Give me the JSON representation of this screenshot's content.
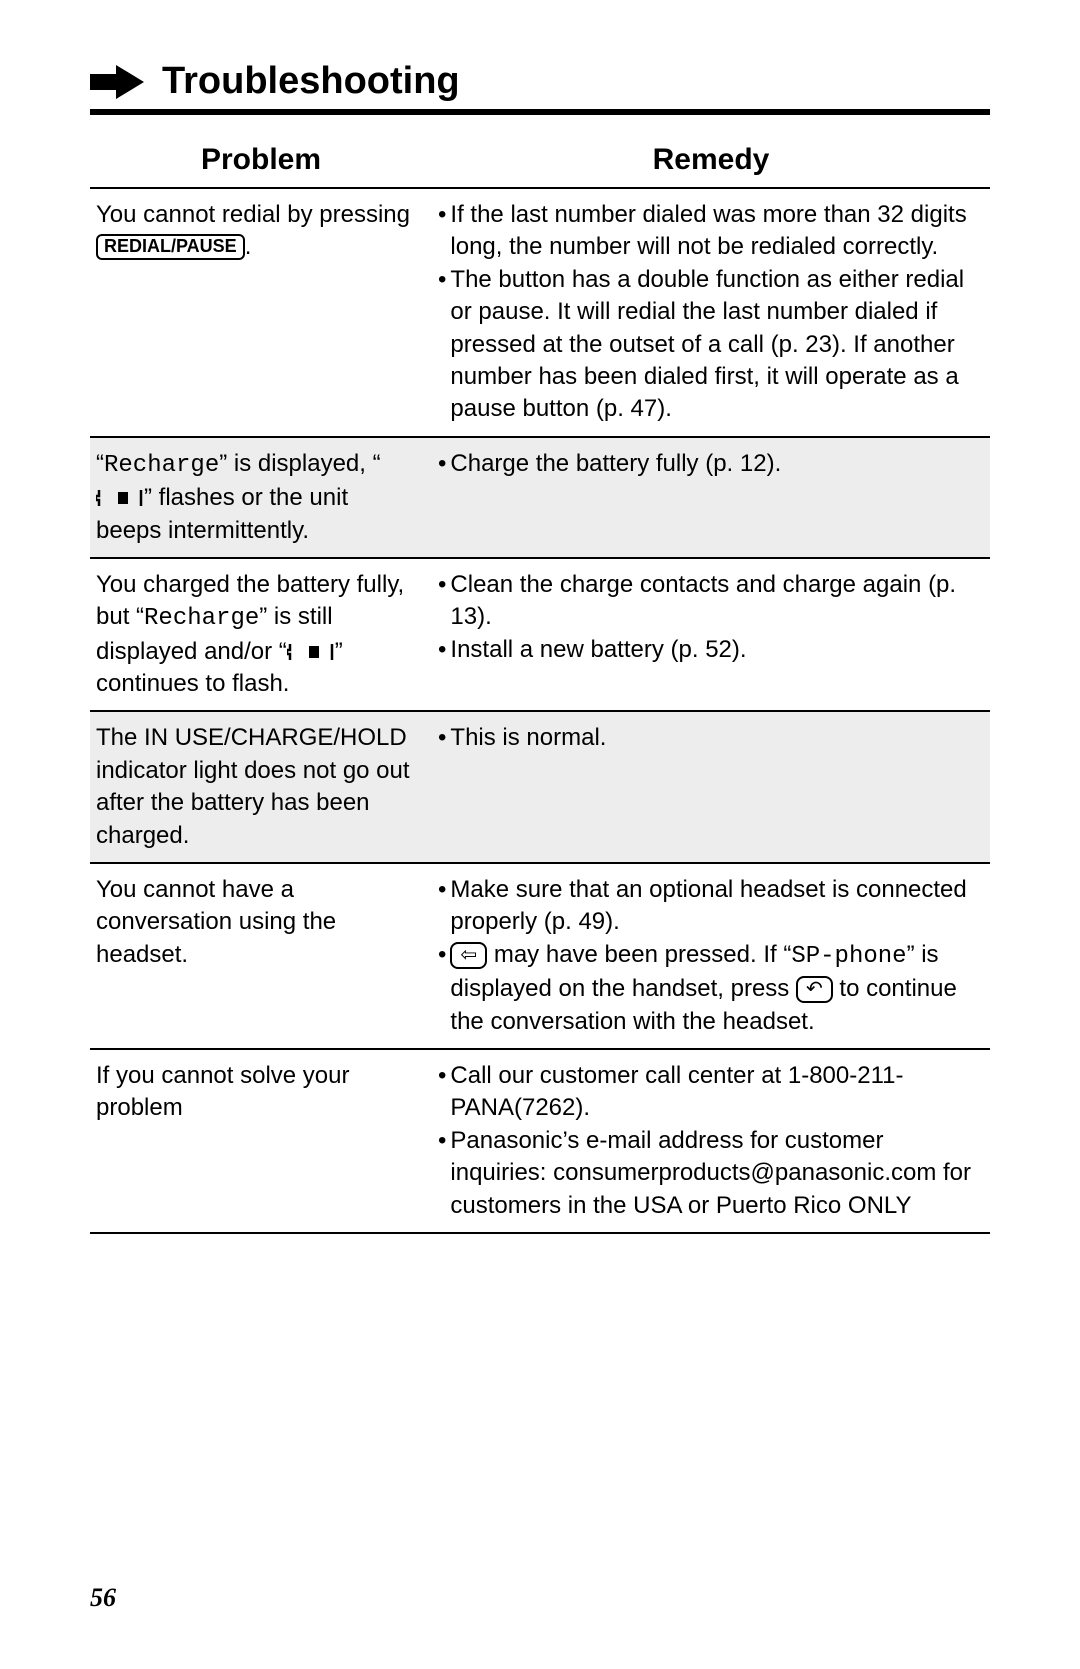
{
  "header": {
    "title": "Troubleshooting"
  },
  "columns": {
    "problem": "Problem",
    "remedy": "Remedy"
  },
  "rows": [
    {
      "shaded": false,
      "problem_parts": [
        {
          "t": "text",
          "v": "You cannot redial by pressing "
        },
        {
          "t": "keycap",
          "v": "REDIAL/PAUSE"
        },
        {
          "t": "text",
          "v": "."
        }
      ],
      "remedies": [
        [
          {
            "t": "text",
            "v": "If the last number dialed was more than 32 digits long, the number will not be redialed correctly."
          }
        ],
        [
          {
            "t": "text",
            "v": "The button has a double function as either redial or pause. It will redial the last number dialed if pressed at the outset of a call (p. 23). If another number has been dialed first, it will operate as a pause button (p. 47)."
          }
        ]
      ]
    },
    {
      "shaded": true,
      "problem_parts": [
        {
          "t": "text",
          "v": "“"
        },
        {
          "t": "mono",
          "v": "Recharge"
        },
        {
          "t": "text",
          "v": "” is displayed, “"
        },
        {
          "t": "batt",
          "v": ""
        },
        {
          "t": "text",
          "v": "” flashes or the unit beeps intermittently."
        }
      ],
      "remedies": [
        [
          {
            "t": "text",
            "v": "Charge the battery fully (p. 12)."
          }
        ]
      ]
    },
    {
      "shaded": false,
      "problem_parts": [
        {
          "t": "text",
          "v": "You charged the battery fully, but “"
        },
        {
          "t": "mono",
          "v": "Recharge"
        },
        {
          "t": "text",
          "v": "” is still displayed and/or “"
        },
        {
          "t": "batt",
          "v": ""
        },
        {
          "t": "text",
          "v": "” continues to flash."
        }
      ],
      "remedies": [
        [
          {
            "t": "text",
            "v": "Clean the charge contacts and charge again (p. 13)."
          }
        ],
        [
          {
            "t": "text",
            "v": "Install a new battery (p. 52)."
          }
        ]
      ]
    },
    {
      "shaded": true,
      "problem_parts": [
        {
          "t": "text",
          "v": "The IN USE/CHARGE/HOLD indicator light does not go out after the battery has been charged."
        }
      ],
      "remedies": [
        [
          {
            "t": "text",
            "v": "This is normal."
          }
        ]
      ]
    },
    {
      "shaded": false,
      "problem_parts": [
        {
          "t": "text",
          "v": "You cannot have a conversation using the headset."
        }
      ],
      "remedies": [
        [
          {
            "t": "text",
            "v": "Make sure that an optional headset is connected properly (p. 49)."
          }
        ],
        [
          {
            "t": "iconcap",
            "v": "⇦"
          },
          {
            "t": "text",
            "v": " may have been pressed. If “"
          },
          {
            "t": "mono",
            "v": "SP-phone"
          },
          {
            "t": "text",
            "v": "” is displayed on the handset, press "
          },
          {
            "t": "iconcap",
            "v": "↶"
          },
          {
            "t": "text",
            "v": " to continue the conversation with the headset."
          }
        ]
      ]
    },
    {
      "shaded": false,
      "problem_parts": [
        {
          "t": "text",
          "v": "If you cannot solve your problem"
        }
      ],
      "remedies": [
        [
          {
            "t": "text",
            "v": "Call our customer call center at 1-800-211-PANA(7262)."
          }
        ],
        [
          {
            "t": "text",
            "v": "Panasonic’s e-mail address for customer inquiries: consumerproducts@panasonic.com for customers in the USA or Puerto Rico ONLY"
          }
        ]
      ]
    }
  ],
  "page_number": "56",
  "bullet_glyph": "•",
  "colors": {
    "page_bg": "#ffffff",
    "text": "#000000",
    "shaded_row_bg": "#ededed",
    "rule": "#000000"
  },
  "fonts": {
    "body_pt": 24,
    "header_pt": 30,
    "title_pt": 38
  }
}
